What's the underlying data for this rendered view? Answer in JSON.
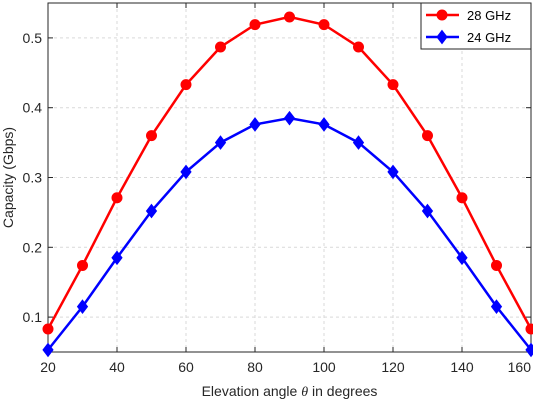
{
  "chart_data": {
    "type": "line",
    "xlabel_prefix": "Elevation angle ",
    "xlabel_symbol": "θ",
    "xlabel_suffix": " in degrees",
    "ylabel": "Capacity (Gbps)",
    "xlim": [
      20,
      160
    ],
    "ylim": [
      0.05,
      0.55
    ],
    "xticks": [
      20,
      40,
      60,
      80,
      100,
      120,
      140,
      160
    ],
    "yticks": [
      0.1,
      0.2,
      0.3,
      0.4,
      0.5
    ],
    "grid": true,
    "legend_position": "top-right",
    "x": [
      20,
      30,
      40,
      50,
      60,
      70,
      80,
      90,
      100,
      110,
      120,
      130,
      140,
      150,
      160
    ],
    "series": [
      {
        "name": "28 GHz",
        "color": "#ff0000",
        "marker": "circle",
        "values": [
          0.083,
          0.174,
          0.271,
          0.36,
          0.433,
          0.487,
          0.519,
          0.53,
          0.519,
          0.487,
          0.433,
          0.36,
          0.271,
          0.174,
          0.083
        ]
      },
      {
        "name": "24 GHz",
        "color": "#0000ff",
        "marker": "diamond",
        "values": [
          0.053,
          0.115,
          0.185,
          0.252,
          0.308,
          0.35,
          0.376,
          0.385,
          0.376,
          0.35,
          0.308,
          0.252,
          0.185,
          0.115,
          0.053
        ]
      }
    ]
  }
}
